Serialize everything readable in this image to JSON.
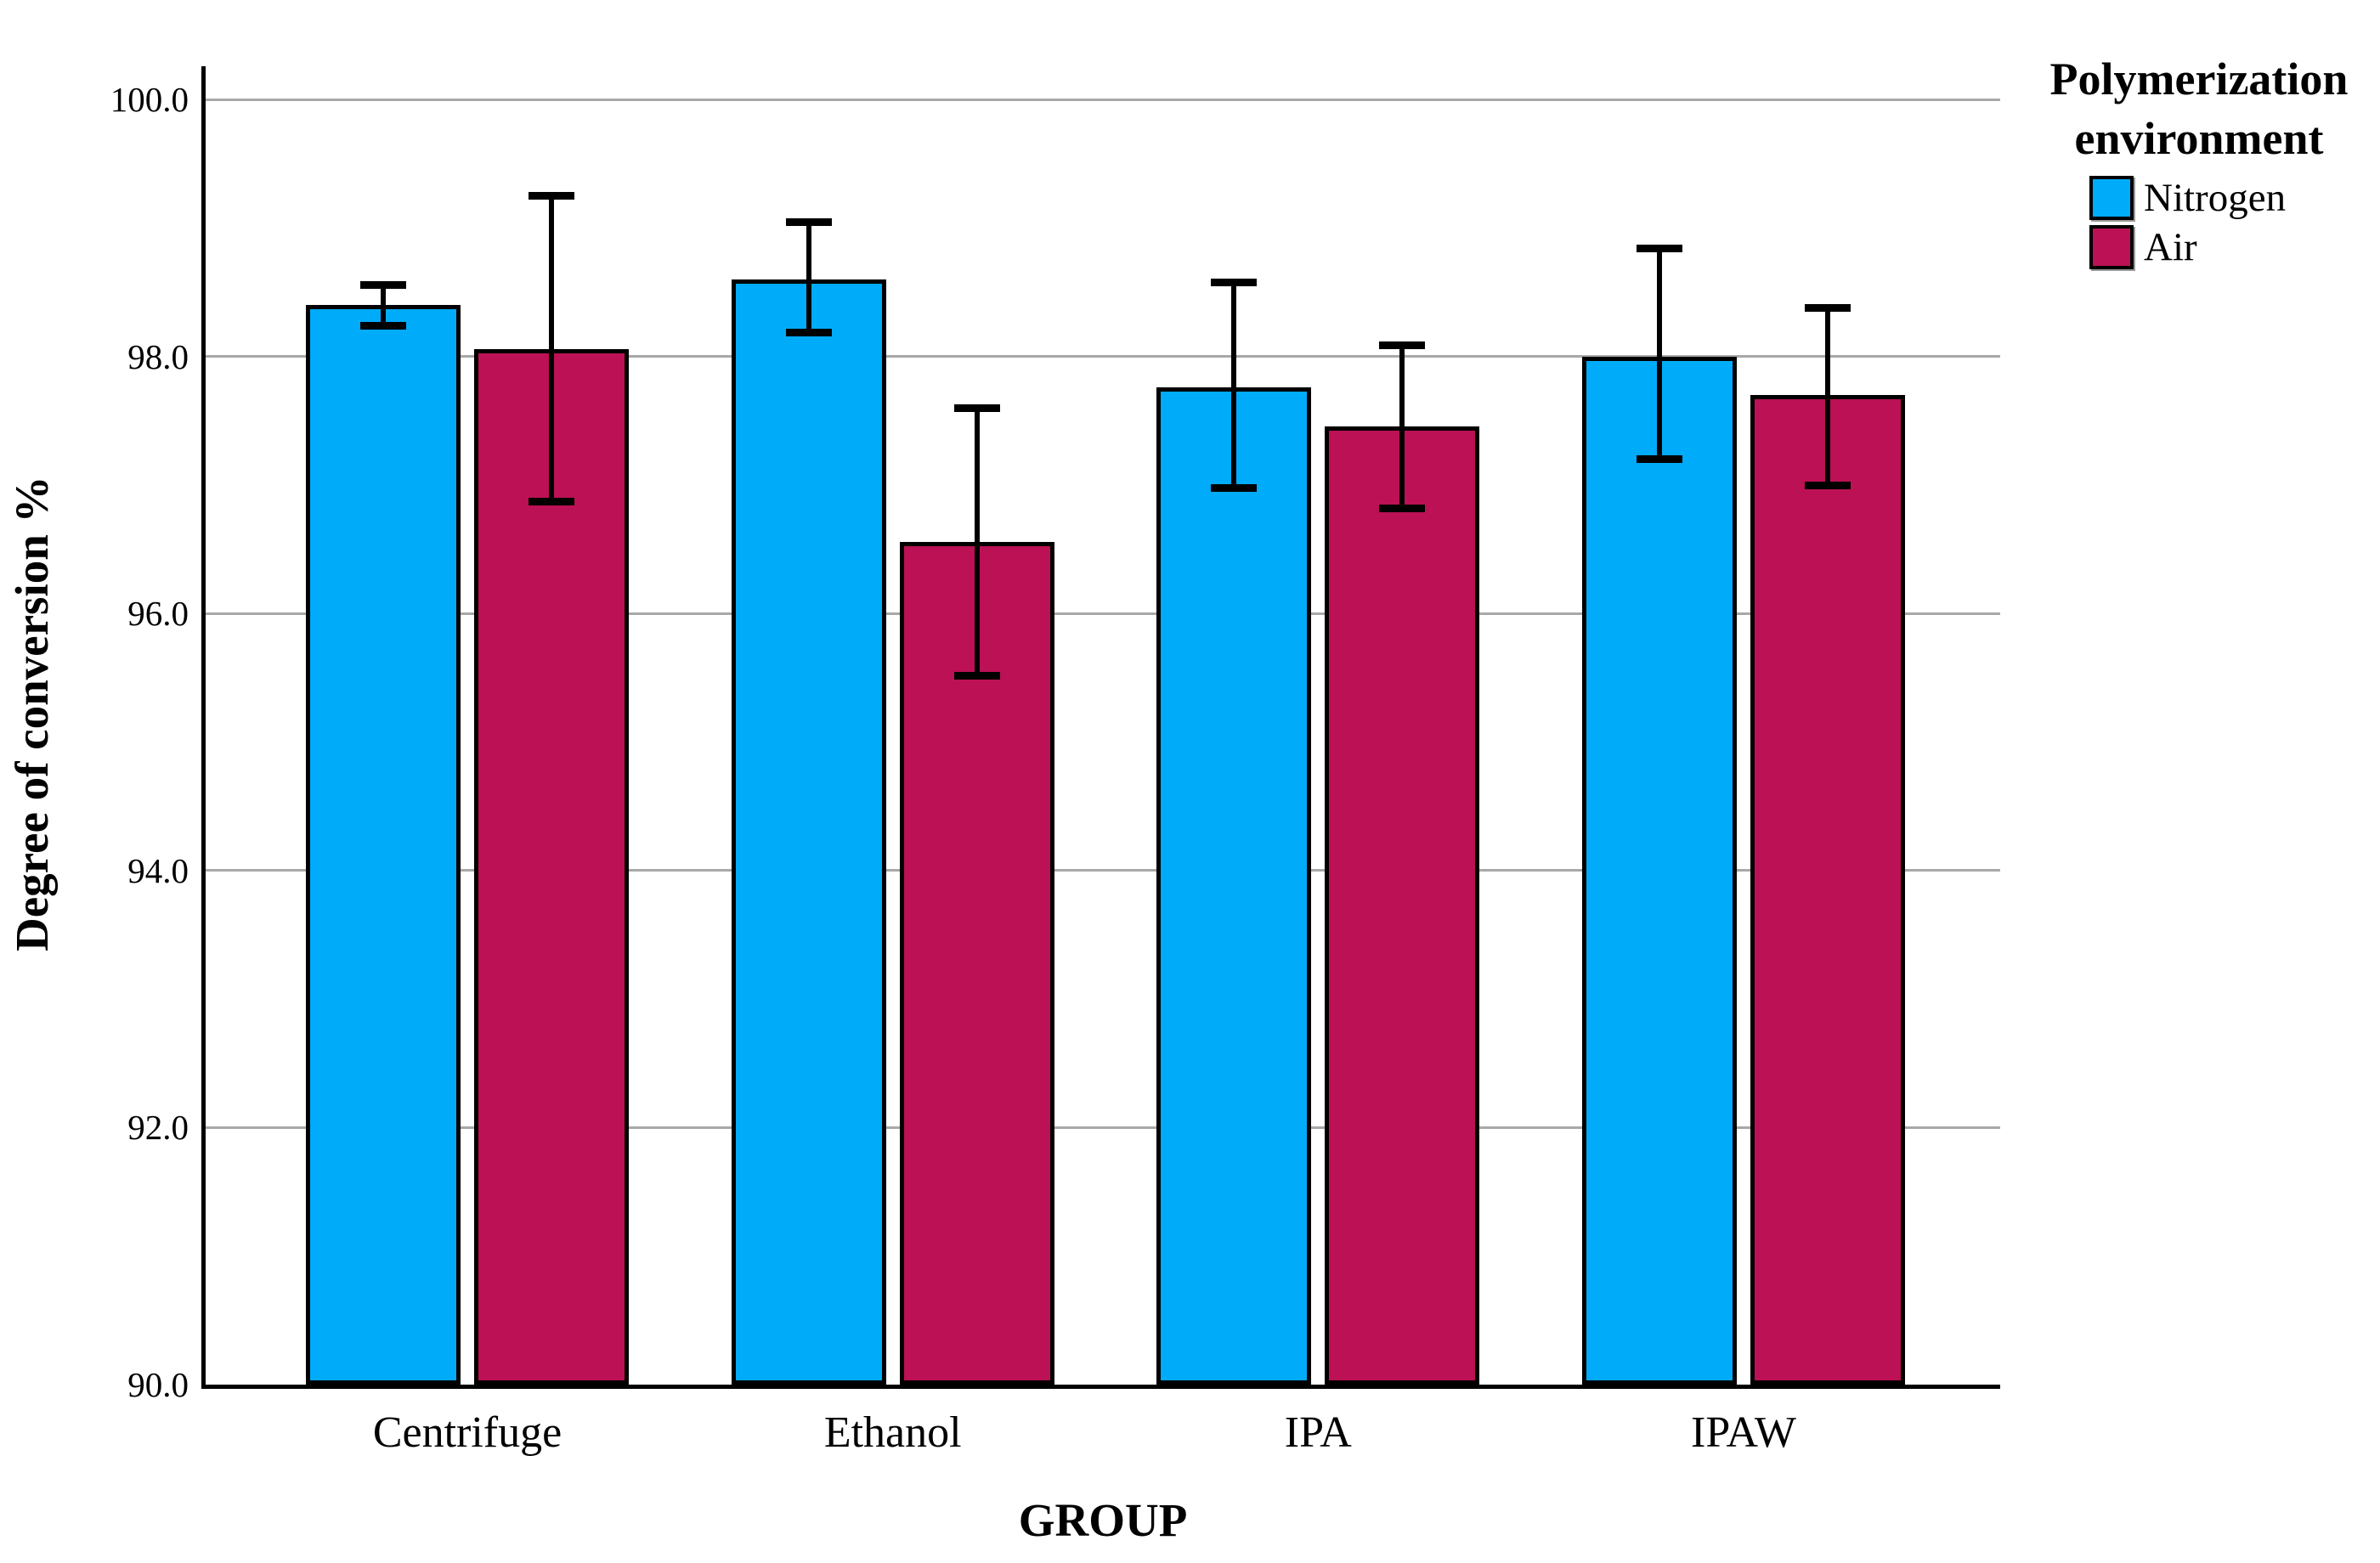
{
  "y_axis": {
    "title": "Degree of conversion %",
    "ticks": [
      {
        "value": 100,
        "label": "100.0"
      },
      {
        "value": 98,
        "label": "98.0"
      },
      {
        "value": 96,
        "label": "96.0"
      },
      {
        "value": 94,
        "label": "94.0"
      },
      {
        "value": 92,
        "label": "92.0"
      },
      {
        "value": 90,
        "label": "90.0"
      }
    ]
  },
  "x_axis": {
    "title": "GROUP",
    "categories": [
      "Centrifuge",
      "Ethanol",
      "IPA",
      "IPAW"
    ]
  },
  "legend": {
    "title_lines": [
      "Polymerization",
      "environment"
    ]
  },
  "chart_data": {
    "type": "bar",
    "title": "",
    "xlabel": "GROUP",
    "ylabel": "Degree of conversion %",
    "ylim": [
      90,
      100.26
    ],
    "yticks": [
      100,
      98,
      96,
      94,
      92,
      90
    ],
    "grid": true,
    "legend_position": "top-right",
    "legend_title": "Polymerization environment",
    "categories": [
      "Centrifuge",
      "Ethanol",
      "IPA",
      "IPAW"
    ],
    "series": [
      {
        "name": "Nitrogen",
        "color": "#00ACFA",
        "values": [
          98.4,
          98.6,
          97.76,
          98.0
        ],
        "error_low": [
          98.24,
          98.19,
          96.98,
          97.2
        ],
        "error_high": [
          98.56,
          99.05,
          98.58,
          98.84
        ]
      },
      {
        "name": "Air",
        "color": "#BC1154",
        "values": [
          98.06,
          96.56,
          97.46,
          97.7
        ],
        "error_low": [
          96.87,
          95.52,
          96.82,
          97.0
        ],
        "error_high": [
          99.25,
          97.6,
          98.09,
          98.38
        ]
      }
    ]
  },
  "style_colors": {
    "background": "#FFFFFF",
    "grid": "#A8A8A8",
    "axis": "#000000",
    "error_bar": "#000000",
    "bar_border": "#000000",
    "text": "#000000"
  }
}
